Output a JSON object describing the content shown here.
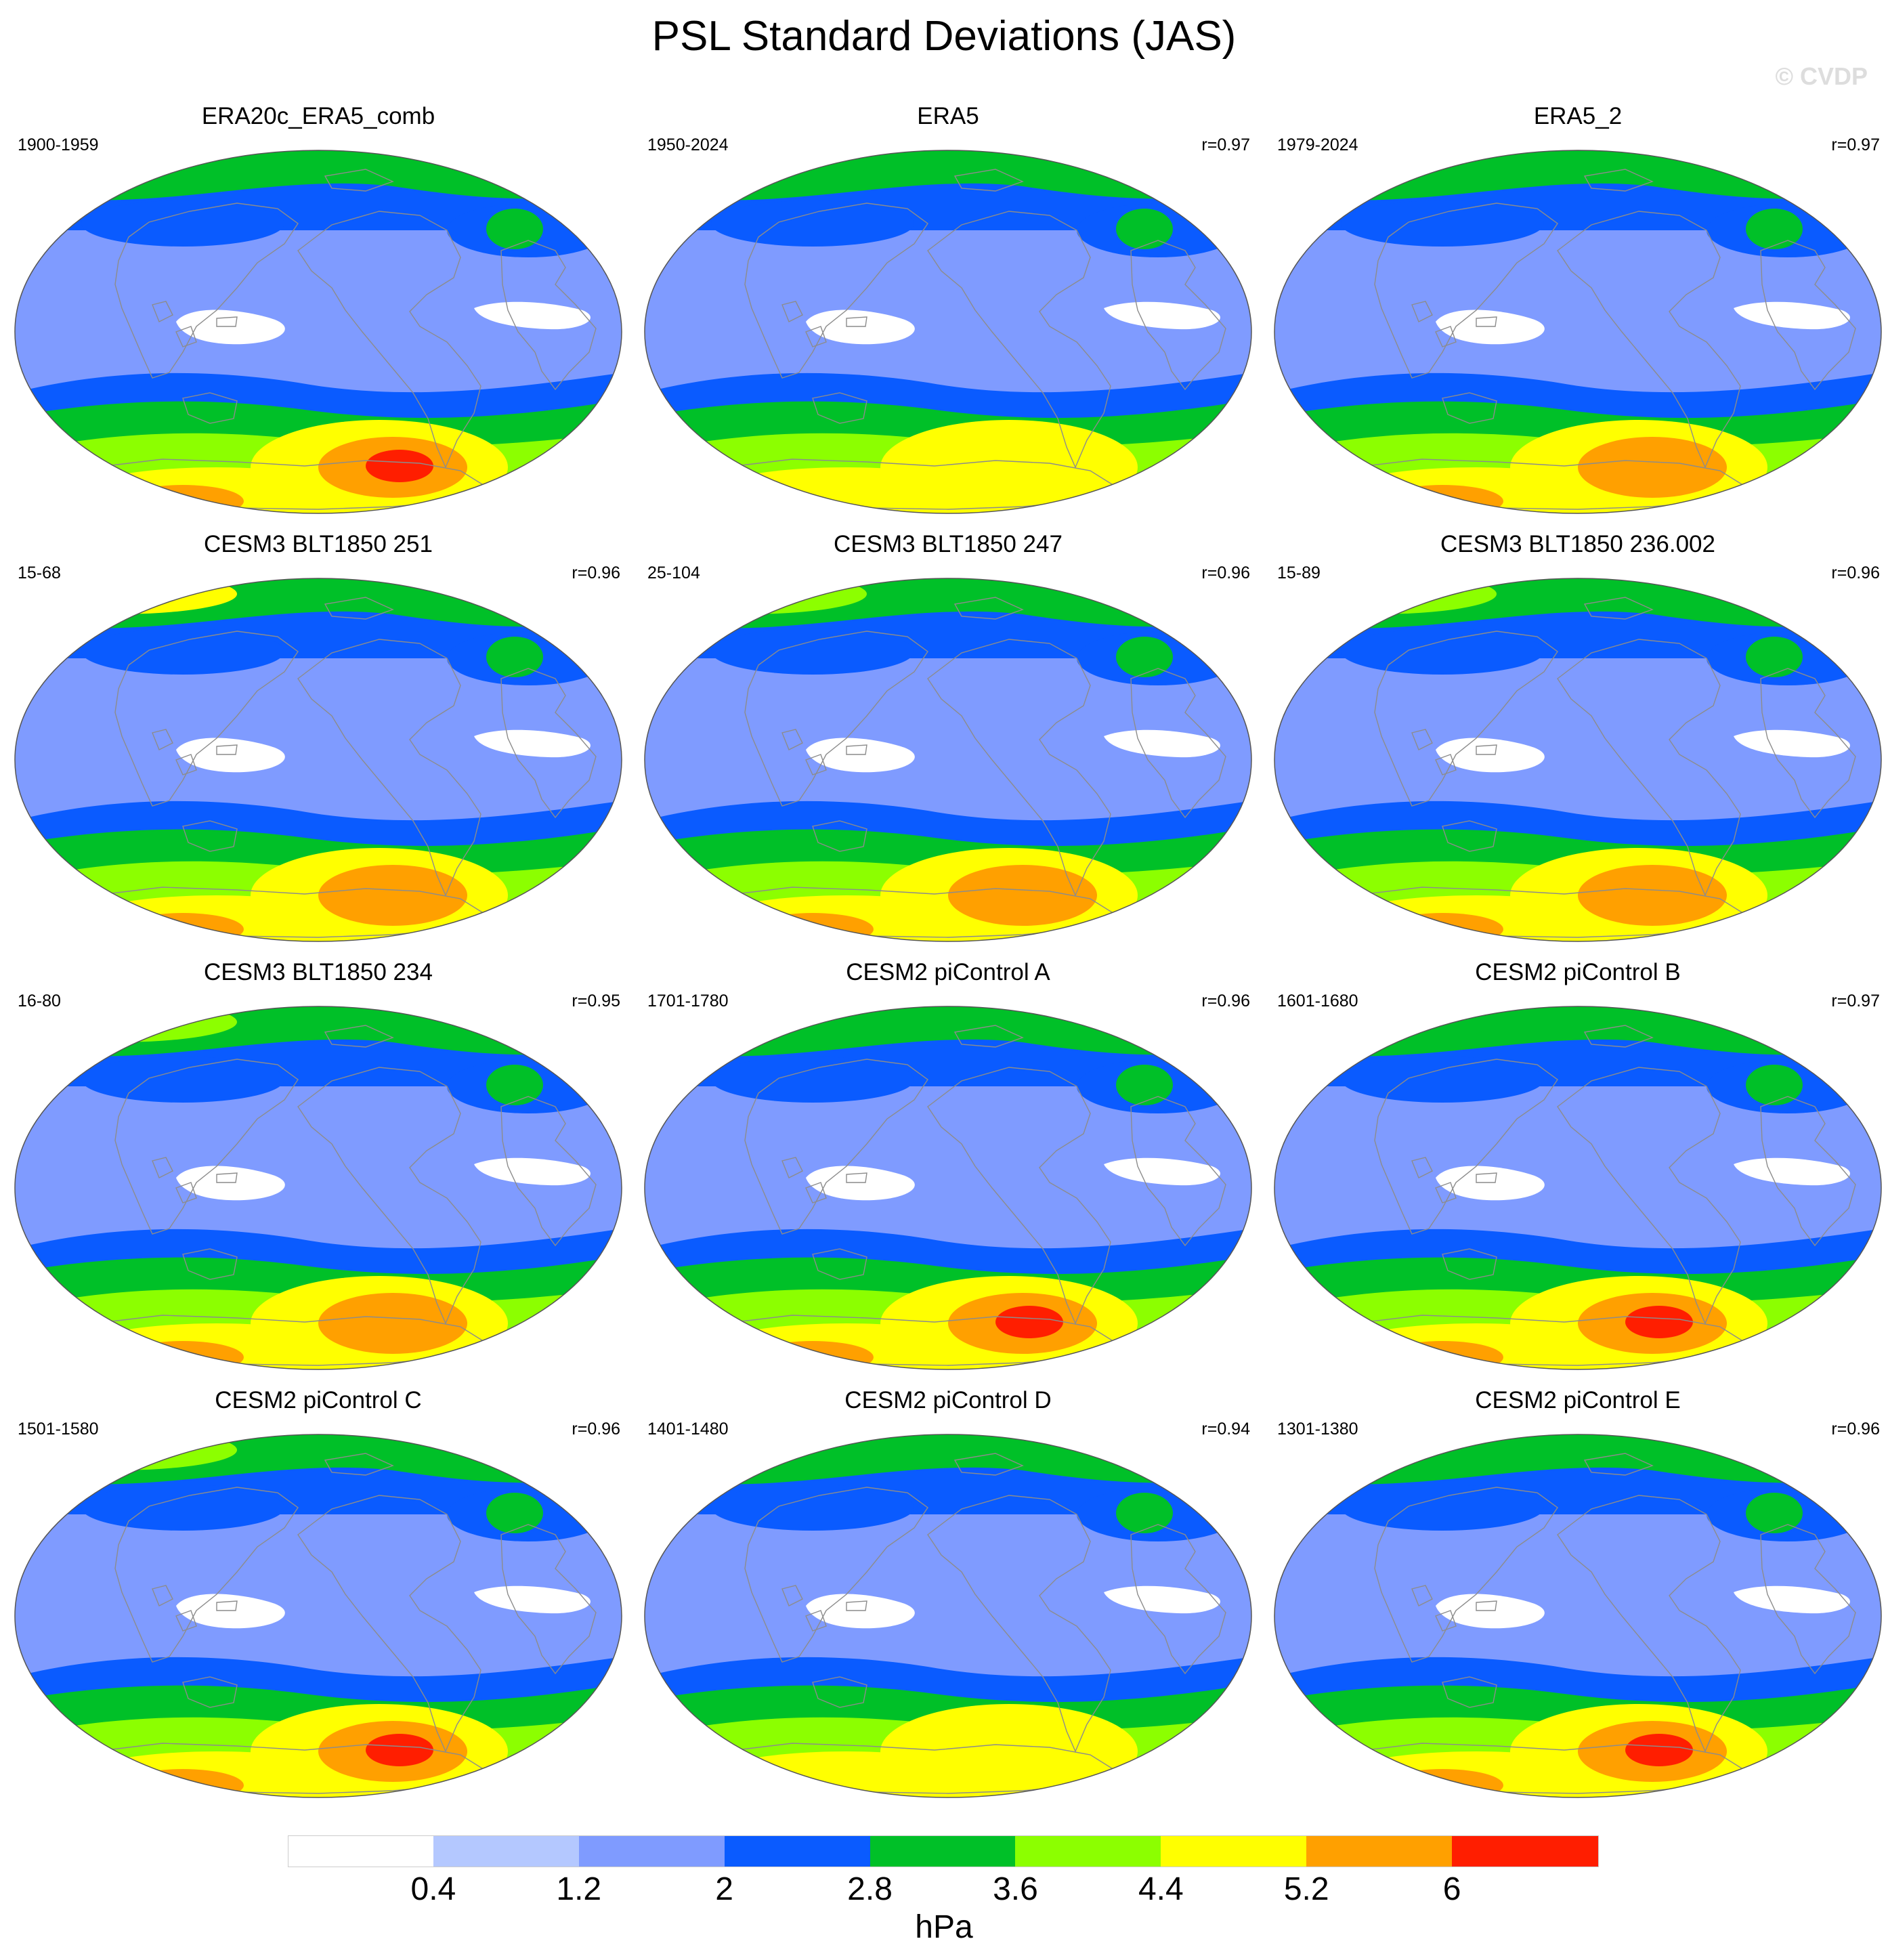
{
  "title": "PSL Standard Deviations (JAS)",
  "watermark": "© CVDP",
  "panels": [
    {
      "title": "ERA20c_ERA5_comb",
      "years": "1900-1959",
      "r": "",
      "south_max": 6.6,
      "north_max": 3.2,
      "pacific_low": 2.1
    },
    {
      "title": "ERA5",
      "years": "1950-2024",
      "r": "r=0.97",
      "south_max": 5.0,
      "north_max": 3.4,
      "pacific_low": 2.4
    },
    {
      "title": "ERA5_2",
      "years": "1979-2024",
      "r": "r=0.97",
      "south_max": 5.4,
      "north_max": 3.4,
      "pacific_low": 2.5
    },
    {
      "title": "CESM3 BLT1850 251",
      "years": "15-68",
      "r": "r=0.96",
      "south_max": 5.8,
      "north_max": 4.5,
      "pacific_low": 2.3
    },
    {
      "title": "CESM3 BLT1850 247",
      "years": "25-104",
      "r": "r=0.96",
      "south_max": 5.3,
      "north_max": 3.7,
      "pacific_low": 2.4
    },
    {
      "title": "CESM3 BLT1850 236.002",
      "years": "15-89",
      "r": "r=0.96",
      "south_max": 5.5,
      "north_max": 4.0,
      "pacific_low": 2.5
    },
    {
      "title": "CESM3 BLT1850 234",
      "years": "16-80",
      "r": "r=0.95",
      "south_max": 5.4,
      "north_max": 3.7,
      "pacific_low": 2.1
    },
    {
      "title": "CESM2 piControl A",
      "years": "1701-1780",
      "r": "r=0.96",
      "south_max": 6.5,
      "north_max": 3.2,
      "pacific_low": 2.6
    },
    {
      "title": "CESM2 piControl B",
      "years": "1601-1680",
      "r": "r=0.97",
      "south_max": 6.2,
      "north_max": 3.4,
      "pacific_low": 2.3
    },
    {
      "title": "CESM2 piControl C",
      "years": "1501-1580",
      "r": "r=0.96",
      "south_max": 6.3,
      "north_max": 3.6,
      "pacific_low": 2.5
    },
    {
      "title": "CESM2 piControl D",
      "years": "1401-1480",
      "r": "r=0.94",
      "south_max": 4.8,
      "north_max": 3.3,
      "pacific_low": 2.5
    },
    {
      "title": "CESM2 piControl E",
      "years": "1301-1380",
      "r": "r=0.96",
      "south_max": 6.1,
      "north_max": 3.3,
      "pacific_low": 2.4
    }
  ],
  "colorbar": {
    "levels": [
      "0.4",
      "1.2",
      "2",
      "2.8",
      "3.6",
      "4.4",
      "5.2",
      "6"
    ],
    "colors": [
      "#ffffff",
      "#b4c8ff",
      "#7f9bff",
      "#0a5bff",
      "#00c028",
      "#8cff00",
      "#ffff00",
      "#ffa000",
      "#ff1e00"
    ],
    "units": "hPa"
  },
  "colors": {
    "coastline": "#8c8c8c",
    "map_outline": "#555555"
  }
}
